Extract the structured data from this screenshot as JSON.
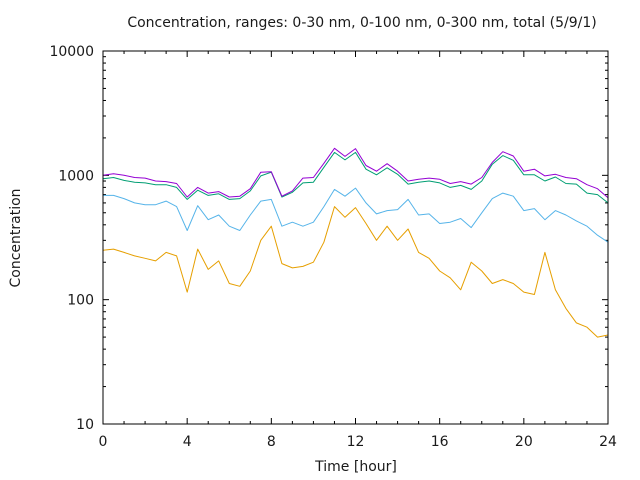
{
  "chart_data": {
    "type": "line",
    "title": "Concentration, ranges: 0-30 nm, 0-100 nm, 0-300 nm, total (5/9/1)",
    "xlabel": "Time [hour]",
    "ylabel": "Concentration",
    "xlim": [
      0,
      24
    ],
    "ylim": [
      10,
      10000
    ],
    "yscale": "log",
    "grid": false,
    "legend": "none",
    "xticks": [
      "0",
      "4",
      "8",
      "12",
      "16",
      "20",
      "24"
    ],
    "xtick_values": [
      0,
      4,
      8,
      12,
      16,
      20,
      24
    ],
    "yticks": [
      "10",
      "100",
      "1000",
      "10000"
    ],
    "ytick_values": [
      10,
      100,
      1000,
      10000
    ],
    "x": [
      0,
      0.5,
      1,
      1.5,
      2,
      2.5,
      3,
      3.5,
      4,
      4.5,
      5,
      5.5,
      6,
      6.5,
      7,
      7.5,
      8,
      8.5,
      9,
      9.5,
      10,
      10.5,
      11,
      11.5,
      12,
      12.5,
      13,
      13.5,
      14,
      14.5,
      15,
      15.5,
      16,
      16.5,
      17,
      17.5,
      18,
      18.5,
      19,
      19.5,
      20,
      20.5,
      21,
      21.5,
      22,
      22.5,
      23,
      23.5,
      24
    ],
    "series": [
      {
        "name": "0-30 nm",
        "color": "#e69f00",
        "values": [
          250,
          255,
          240,
          225,
          215,
          205,
          240,
          225,
          115,
          255,
          175,
          205,
          135,
          128,
          170,
          300,
          390,
          195,
          180,
          185,
          200,
          290,
          560,
          460,
          550,
          410,
          300,
          390,
          300,
          370,
          240,
          215,
          170,
          150,
          120,
          200,
          170,
          135,
          145,
          135,
          115,
          110,
          240,
          120,
          85,
          65,
          60,
          50,
          52
        ]
      },
      {
        "name": "0-100 nm",
        "color": "#56b4e9",
        "values": [
          690,
          690,
          650,
          600,
          580,
          580,
          620,
          560,
          360,
          570,
          440,
          480,
          390,
          360,
          480,
          620,
          640,
          390,
          420,
          390,
          420,
          560,
          770,
          680,
          790,
          600,
          490,
          520,
          530,
          640,
          480,
          490,
          410,
          420,
          450,
          380,
          500,
          650,
          720,
          680,
          520,
          540,
          440,
          520,
          480,
          430,
          390,
          330,
          290
        ]
      },
      {
        "name": "0-300 nm",
        "color": "#009e73",
        "values": [
          940,
          960,
          910,
          880,
          870,
          840,
          840,
          800,
          640,
          760,
          690,
          710,
          640,
          650,
          750,
          990,
          1060,
          670,
          730,
          870,
          880,
          1160,
          1530,
          1330,
          1530,
          1120,
          1010,
          1150,
          1020,
          850,
          880,
          900,
          870,
          800,
          830,
          770,
          900,
          1230,
          1440,
          1320,
          1010,
          1010,
          900,
          970,
          860,
          850,
          720,
          700,
          600
        ]
      },
      {
        "name": "total",
        "color": "#9400d3",
        "values": [
          1000,
          1030,
          1000,
          960,
          950,
          900,
          890,
          860,
          670,
          800,
          720,
          740,
          670,
          680,
          780,
          1060,
          1070,
          680,
          750,
          950,
          960,
          1250,
          1650,
          1420,
          1640,
          1200,
          1080,
          1240,
          1080,
          900,
          930,
          950,
          930,
          860,
          890,
          850,
          960,
          1270,
          1550,
          1430,
          1080,
          1120,
          990,
          1020,
          960,
          940,
          840,
          780,
          660
        ]
      }
    ]
  }
}
